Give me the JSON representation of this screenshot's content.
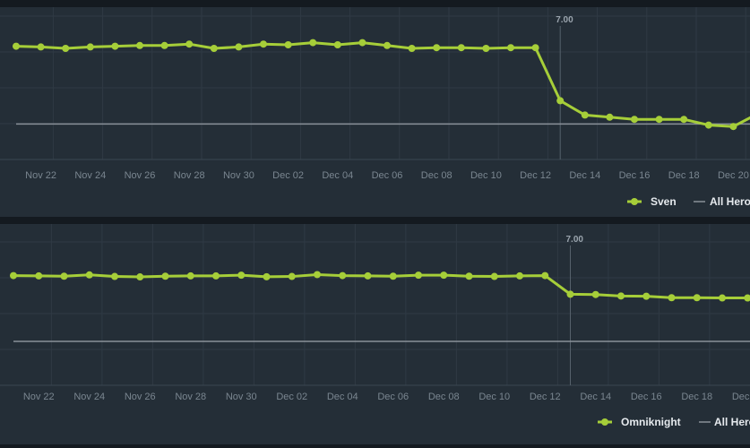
{
  "charts": [
    {
      "id": "chart-1",
      "chart_data": {
        "type": "line",
        "title": "",
        "xlabel": "",
        "ylabel": "",
        "x": [
          "Nov 21",
          "Nov 22",
          "Nov 23",
          "Nov 24",
          "Nov 25",
          "Nov 26",
          "Nov 27",
          "Nov 28",
          "Nov 29",
          "Nov 30",
          "Dec 01",
          "Dec 02",
          "Dec 03",
          "Dec 04",
          "Dec 05",
          "Dec 06",
          "Dec 07",
          "Dec 08",
          "Dec 09",
          "Dec 10",
          "Dec 11",
          "Dec 12",
          "Dec 13",
          "Dec 14",
          "Dec 15",
          "Dec 16",
          "Dec 17",
          "Dec 18",
          "Dec 19",
          "Dec 20",
          "Dec 21"
        ],
        "tick_labels": [
          "Nov 22",
          "Nov 24",
          "Nov 26",
          "Nov 28",
          "Nov 30",
          "Dec 02",
          "Dec 04",
          "Dec 06",
          "Dec 08",
          "Dec 10",
          "Dec 12",
          "Dec 14",
          "Dec 16",
          "Dec 18",
          "Dec 20"
        ],
        "ylim": [
          0,
          100
        ],
        "grid": true,
        "legend_position": "bottom-right",
        "series": [
          {
            "name": "Sven",
            "color": "#a6ce39",
            "marker": "circle",
            "values": [
              79,
              78.5,
              77.5,
              78.5,
              79,
              79.5,
              79.5,
              80.5,
              77.5,
              78.5,
              80.5,
              80,
              81.5,
              80,
              81.5,
              79.5,
              77.5,
              78,
              78,
              77.5,
              78,
              78,
              41,
              31,
              29.5,
              28,
              28,
              28,
              24,
              23,
              32
            ]
          },
          {
            "name": "All Heroes",
            "color": "#8a9199",
            "marker": "none",
            "values": [
              24.8,
              24.8,
              24.8,
              24.8,
              24.8,
              24.8,
              24.8,
              24.8,
              24.8,
              24.8,
              24.8,
              24.8,
              24.8,
              24.8,
              24.8,
              24.8,
              24.8,
              24.8,
              24.8,
              24.8,
              24.8,
              24.8,
              24.8,
              24.8,
              24.8,
              24.8,
              24.8,
              24.8,
              24.8,
              24.8,
              24.8
            ]
          }
        ],
        "annotations": [
          {
            "label": "7.00",
            "x": "Dec 13"
          }
        ]
      }
    },
    {
      "id": "chart-2",
      "chart_data": {
        "type": "line",
        "title": "",
        "xlabel": "",
        "ylabel": "",
        "x": [
          "Nov 21",
          "Nov 22",
          "Nov 23",
          "Nov 24",
          "Nov 25",
          "Nov 26",
          "Nov 27",
          "Nov 28",
          "Nov 29",
          "Nov 30",
          "Dec 01",
          "Dec 02",
          "Dec 03",
          "Dec 04",
          "Dec 05",
          "Dec 06",
          "Dec 07",
          "Dec 08",
          "Dec 09",
          "Dec 10",
          "Dec 11",
          "Dec 12",
          "Dec 13",
          "Dec 14",
          "Dec 15",
          "Dec 16",
          "Dec 17",
          "Dec 18",
          "Dec 19",
          "Dec 20",
          "Dec 21"
        ],
        "tick_labels": [
          "Nov 22",
          "Nov 24",
          "Nov 26",
          "Nov 28",
          "Nov 30",
          "Dec 02",
          "Dec 04",
          "Dec 06",
          "Dec 08",
          "Dec 10",
          "Dec 12",
          "Dec 14",
          "Dec 16",
          "Dec 18",
          "Dec 20"
        ],
        "ylim": [
          0,
          100
        ],
        "grid": true,
        "legend_position": "bottom-right",
        "series": [
          {
            "name": "Omniknight",
            "color": "#a6ce39",
            "marker": "circle",
            "values": [
              76.5,
              76.3,
              76.1,
              77,
              75.9,
              75.6,
              76.1,
              76.3,
              76.3,
              76.8,
              75.7,
              75.9,
              77.2,
              76.5,
              76.3,
              76.1,
              76.8,
              76.8,
              76.1,
              75.9,
              76.3,
              76.5,
              63.5,
              63.3,
              62.3,
              62.1,
              61.1,
              61.1,
              60.9,
              60.9,
              60.9
            ]
          },
          {
            "name": "All Heroes",
            "color": "#8a9199",
            "marker": "none",
            "values": [
              30.6,
              30.6,
              30.6,
              30.6,
              30.6,
              30.6,
              30.6,
              30.6,
              30.6,
              30.6,
              30.6,
              30.6,
              30.6,
              30.6,
              30.6,
              30.6,
              30.6,
              30.6,
              30.6,
              30.6,
              30.6,
              30.6,
              30.6,
              30.6,
              30.6,
              30.6,
              30.6,
              30.6,
              30.6,
              30.6,
              30.6
            ]
          }
        ],
        "annotations": [
          {
            "label": "7.00",
            "x": "Dec 13"
          }
        ]
      }
    }
  ],
  "colors": {
    "background": "#242e37",
    "gutter": "#141a20",
    "grid": "#2f3a44",
    "accent": "#a6ce39",
    "baseline": "#8a9199"
  }
}
